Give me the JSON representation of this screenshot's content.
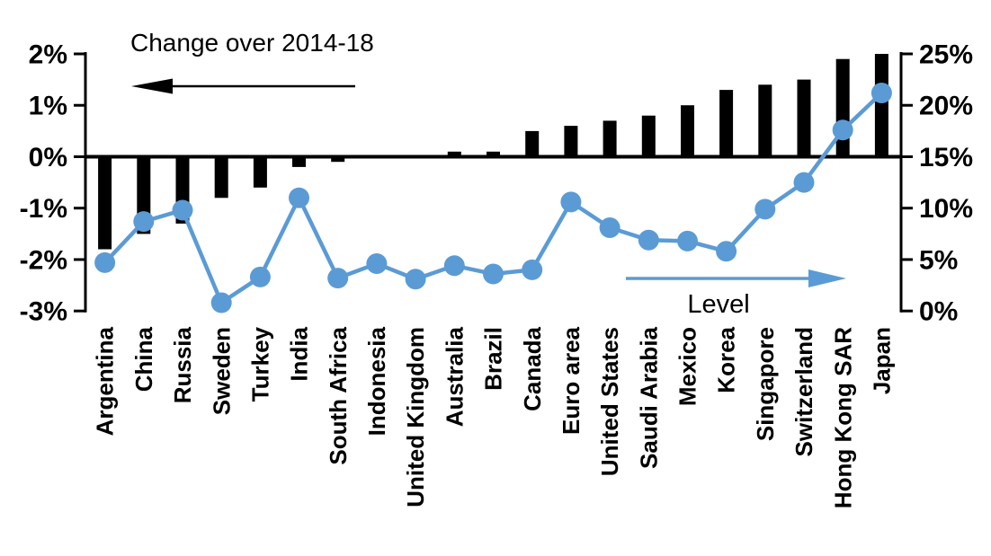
{
  "chart_data": {
    "type": "combo-bar-line",
    "title": "",
    "categories": [
      "Argentina",
      "China",
      "Russia",
      "Sweden",
      "Turkey",
      "India",
      "South Africa",
      "Indonesia",
      "United Kingdom",
      "Australia",
      "Brazil",
      "Canada",
      "Euro area",
      "United States",
      "Saudi Arabia",
      "Mexico",
      "Korea",
      "Singapore",
      "Switzerland",
      "Hong Kong SAR",
      "Japan"
    ],
    "series": [
      {
        "name": "Change over 2014-18",
        "type": "bar",
        "axis": "left",
        "color": "#000000",
        "values": [
          -1.8,
          -1.5,
          -1.3,
          -0.8,
          -0.6,
          -0.2,
          -0.1,
          0.0,
          0.0,
          0.1,
          0.1,
          0.5,
          0.6,
          0.7,
          0.8,
          1.0,
          1.3,
          1.4,
          1.5,
          1.9,
          2.0
        ]
      },
      {
        "name": "Level",
        "type": "line",
        "axis": "right",
        "color": "#5B9BD5",
        "values": [
          4.7,
          8.7,
          9.8,
          0.8,
          3.3,
          11.0,
          3.2,
          4.6,
          3.1,
          4.4,
          3.6,
          4.0,
          10.6,
          8.1,
          6.9,
          6.8,
          5.8,
          9.9,
          12.5,
          17.6,
          21.2
        ]
      }
    ],
    "left_axis": {
      "tick_labels": [
        "2%",
        "1%",
        "0%",
        "-1%",
        "-2%",
        "-3%"
      ],
      "tick_values": [
        2,
        1,
        0,
        -1,
        -2,
        -3
      ],
      "min": -3,
      "max": 2
    },
    "right_axis": {
      "tick_labels": [
        "25%",
        "20%",
        "15%",
        "10%",
        "5%",
        "0%"
      ],
      "tick_values": [
        25,
        20,
        15,
        10,
        5,
        0
      ],
      "min": 0,
      "max": 25
    },
    "grid": "off",
    "legend": "in-plot arrow annotations pointing to each series' axis"
  }
}
